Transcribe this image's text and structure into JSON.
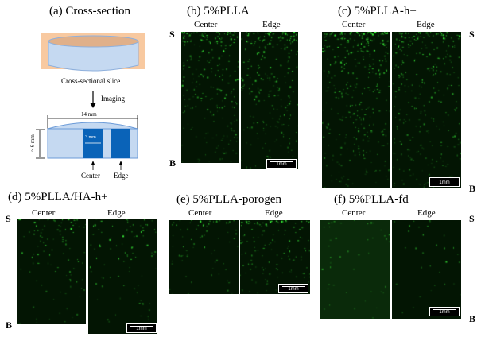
{
  "panel_a": {
    "title": "(a) Cross-section",
    "slice_label": "Cross-sectional slice",
    "arrow_label": "Imaging",
    "width_label": "14 mm",
    "height_label": "~ 6 mm",
    "column_width_label": "3 mm",
    "center_label": "Center",
    "edge_label": "Edge",
    "colors": {
      "mold": "#f8c9a0",
      "scaffold": "#c5d9f1",
      "column": "#0a63b8"
    }
  },
  "side_labels": {
    "surface": "S",
    "bottom": "B"
  },
  "column_labels": {
    "center": "Center",
    "edge": "Edge"
  },
  "scale_bar": "1mm",
  "panels": [
    {
      "id": "b",
      "title": "(b) 5%PLLA"
    },
    {
      "id": "c",
      "title": "(c) 5%PLLA-h+"
    },
    {
      "id": "d",
      "title": "(d) 5%PLLA/HA-h+"
    },
    {
      "id": "e",
      "title": "(e) 5%PLLA-porogen"
    },
    {
      "id": "f",
      "title": "(f) 5%PLLA-fd"
    }
  ],
  "fluorescence_color": "#3cff3c"
}
